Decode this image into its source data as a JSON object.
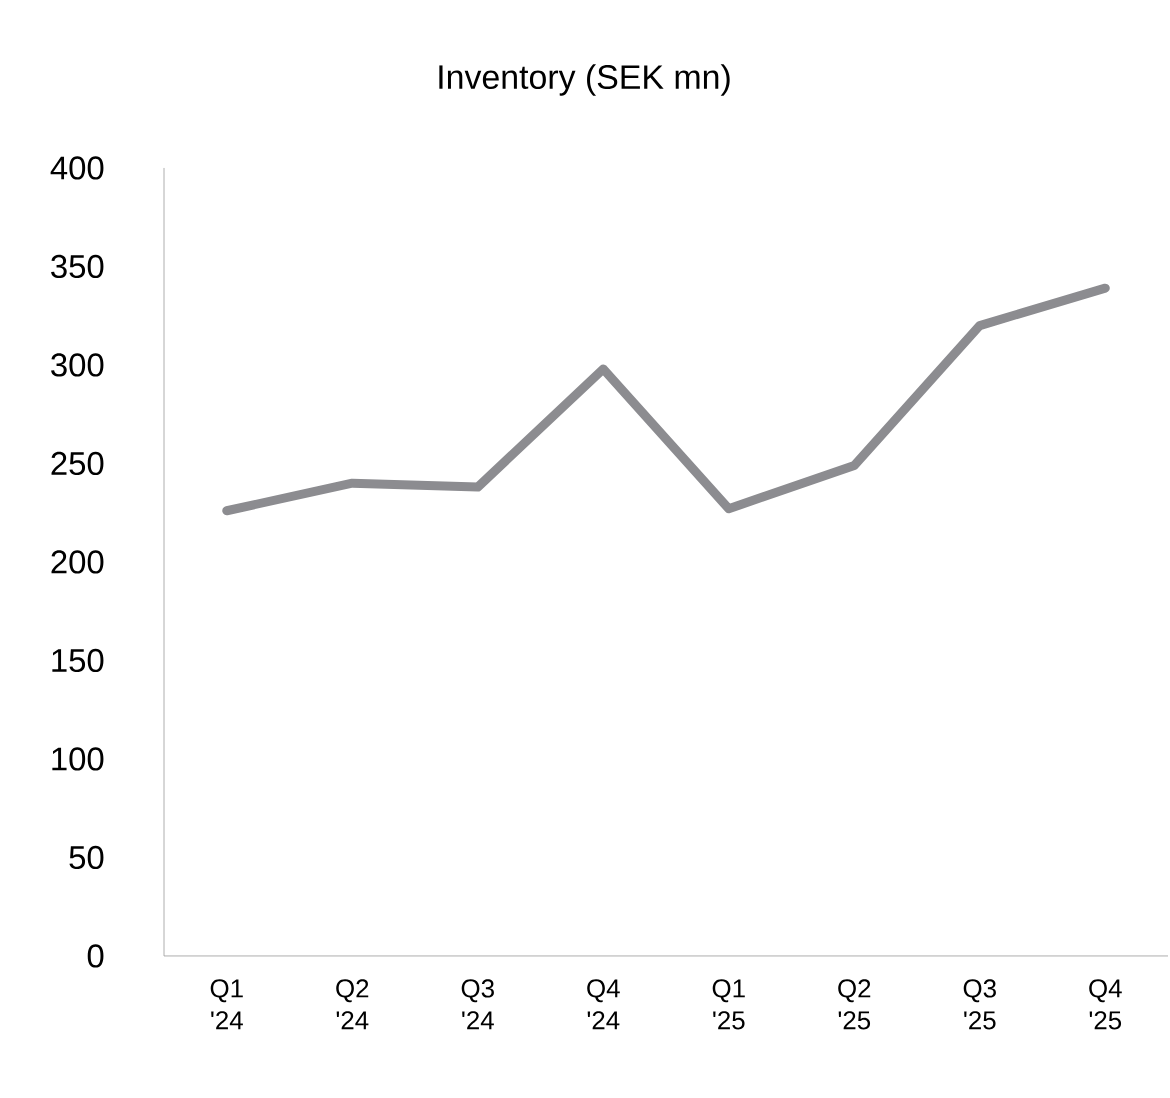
{
  "chart_data": {
    "type": "line",
    "title": "Inventory (SEK mn)",
    "categories": [
      "Q1 '24",
      "Q2 '24",
      "Q3 '24",
      "Q4 '24",
      "Q1 '25",
      "Q2 '25",
      "Q3 '25",
      "Q4 '25"
    ],
    "values": [
      226,
      240,
      238,
      298,
      227,
      249,
      320,
      339
    ],
    "color": "#8c8c90",
    "ylim": [
      0,
      400
    ],
    "yticks": [
      0,
      50,
      100,
      150,
      200,
      250,
      300,
      350,
      400
    ],
    "marker": "none",
    "line_style": "solid"
  }
}
